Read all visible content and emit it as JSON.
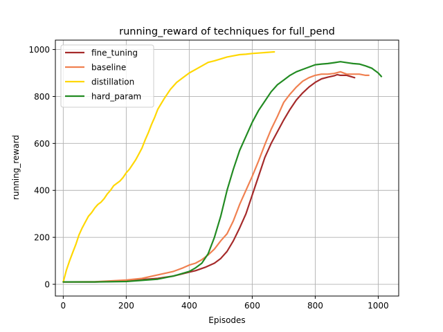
{
  "chart_data": {
    "type": "line",
    "title": "running_reward of techniques for full_pend",
    "xlabel": "Episodes",
    "ylabel": "running_reward",
    "xlim": [
      -25,
      1065
    ],
    "ylim": [
      -50,
      1040
    ],
    "x_ticks": [
      0,
      200,
      400,
      600,
      800,
      1000
    ],
    "y_ticks": [
      0,
      200,
      400,
      600,
      800,
      1000
    ],
    "x_tick_labels": [
      "0",
      "200",
      "400",
      "600",
      "800",
      "1000"
    ],
    "y_tick_labels": [
      "0",
      "200",
      "400",
      "600",
      "800",
      "1000"
    ],
    "grid": true,
    "legend_position": "upper-left",
    "series": [
      {
        "name": "fine_tuning",
        "color": "#a52a2a",
        "points": [
          [
            0,
            10
          ],
          [
            100,
            10
          ],
          [
            200,
            15
          ],
          [
            300,
            25
          ],
          [
            350,
            35
          ],
          [
            400,
            52
          ],
          [
            420,
            58
          ],
          [
            450,
            72
          ],
          [
            480,
            90
          ],
          [
            500,
            110
          ],
          [
            520,
            140
          ],
          [
            540,
            185
          ],
          [
            560,
            240
          ],
          [
            580,
            300
          ],
          [
            600,
            380
          ],
          [
            620,
            460
          ],
          [
            640,
            540
          ],
          [
            660,
            600
          ],
          [
            680,
            650
          ],
          [
            700,
            700
          ],
          [
            720,
            745
          ],
          [
            740,
            785
          ],
          [
            760,
            815
          ],
          [
            780,
            840
          ],
          [
            800,
            860
          ],
          [
            820,
            875
          ],
          [
            840,
            882
          ],
          [
            860,
            888
          ],
          [
            870,
            893
          ],
          [
            880,
            890
          ],
          [
            900,
            890
          ],
          [
            925,
            880
          ]
        ]
      },
      {
        "name": "baseline",
        "color": "#f08050",
        "points": [
          [
            0,
            10
          ],
          [
            100,
            11
          ],
          [
            200,
            18
          ],
          [
            250,
            25
          ],
          [
            300,
            40
          ],
          [
            350,
            55
          ],
          [
            380,
            70
          ],
          [
            400,
            82
          ],
          [
            420,
            90
          ],
          [
            440,
            105
          ],
          [
            460,
            125
          ],
          [
            480,
            150
          ],
          [
            500,
            185
          ],
          [
            520,
            215
          ],
          [
            540,
            270
          ],
          [
            560,
            340
          ],
          [
            580,
            400
          ],
          [
            600,
            460
          ],
          [
            620,
            525
          ],
          [
            640,
            595
          ],
          [
            660,
            660
          ],
          [
            680,
            715
          ],
          [
            700,
            775
          ],
          [
            720,
            810
          ],
          [
            740,
            840
          ],
          [
            760,
            865
          ],
          [
            780,
            880
          ],
          [
            800,
            890
          ],
          [
            820,
            895
          ],
          [
            840,
            895
          ],
          [
            860,
            898
          ],
          [
            880,
            905
          ],
          [
            900,
            895
          ],
          [
            920,
            895
          ],
          [
            940,
            895
          ],
          [
            960,
            890
          ],
          [
            970,
            890
          ]
        ]
      },
      {
        "name": "distillation",
        "color": "#ffd700",
        "points": [
          [
            0,
            10
          ],
          [
            10,
            60
          ],
          [
            20,
            100
          ],
          [
            30,
            135
          ],
          [
            40,
            170
          ],
          [
            50,
            210
          ],
          [
            60,
            240
          ],
          [
            70,
            265
          ],
          [
            80,
            290
          ],
          [
            90,
            305
          ],
          [
            100,
            325
          ],
          [
            110,
            340
          ],
          [
            120,
            350
          ],
          [
            130,
            365
          ],
          [
            140,
            385
          ],
          [
            150,
            400
          ],
          [
            160,
            420
          ],
          [
            170,
            430
          ],
          [
            180,
            440
          ],
          [
            190,
            455
          ],
          [
            200,
            475
          ],
          [
            210,
            490
          ],
          [
            220,
            510
          ],
          [
            230,
            530
          ],
          [
            240,
            555
          ],
          [
            250,
            580
          ],
          [
            260,
            615
          ],
          [
            270,
            645
          ],
          [
            280,
            680
          ],
          [
            290,
            710
          ],
          [
            300,
            745
          ],
          [
            320,
            790
          ],
          [
            340,
            830
          ],
          [
            360,
            860
          ],
          [
            380,
            880
          ],
          [
            400,
            900
          ],
          [
            420,
            915
          ],
          [
            440,
            930
          ],
          [
            460,
            945
          ],
          [
            480,
            952
          ],
          [
            500,
            960
          ],
          [
            520,
            968
          ],
          [
            540,
            973
          ],
          [
            560,
            978
          ],
          [
            580,
            980
          ],
          [
            600,
            983
          ],
          [
            620,
            985
          ],
          [
            640,
            987
          ],
          [
            660,
            989
          ],
          [
            670,
            990
          ]
        ]
      },
      {
        "name": "hard_param",
        "color": "#228b22",
        "points": [
          [
            0,
            10
          ],
          [
            100,
            10
          ],
          [
            200,
            12
          ],
          [
            300,
            22
          ],
          [
            350,
            35
          ],
          [
            400,
            55
          ],
          [
            420,
            70
          ],
          [
            440,
            90
          ],
          [
            460,
            130
          ],
          [
            480,
            200
          ],
          [
            500,
            290
          ],
          [
            520,
            400
          ],
          [
            540,
            490
          ],
          [
            560,
            570
          ],
          [
            580,
            630
          ],
          [
            600,
            690
          ],
          [
            620,
            740
          ],
          [
            640,
            780
          ],
          [
            660,
            820
          ],
          [
            680,
            850
          ],
          [
            700,
            870
          ],
          [
            720,
            890
          ],
          [
            740,
            905
          ],
          [
            760,
            915
          ],
          [
            780,
            925
          ],
          [
            800,
            935
          ],
          [
            820,
            938
          ],
          [
            840,
            940
          ],
          [
            860,
            944
          ],
          [
            880,
            948
          ],
          [
            900,
            944
          ],
          [
            920,
            940
          ],
          [
            940,
            938
          ],
          [
            960,
            930
          ],
          [
            980,
            920
          ],
          [
            1000,
            900
          ],
          [
            1010,
            885
          ]
        ]
      }
    ]
  }
}
